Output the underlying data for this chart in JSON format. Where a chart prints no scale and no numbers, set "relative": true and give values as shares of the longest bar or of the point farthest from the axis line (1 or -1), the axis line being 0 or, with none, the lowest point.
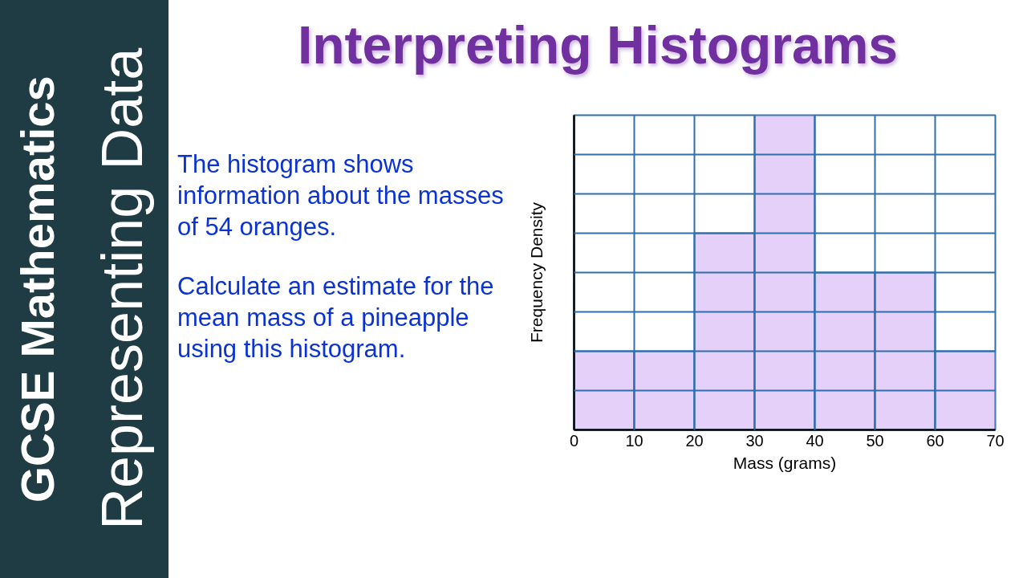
{
  "chart_data": {
    "type": "bar",
    "title": "Interpreting Histograms",
    "xlabel": "Mass (grams)",
    "ylabel": "Frequency Density",
    "x": [
      5,
      15,
      25,
      35,
      45,
      55,
      65
    ],
    "values": [
      0.25,
      0.25,
      0.625,
      1,
      0.5,
      0.5,
      0.25
    ],
    "relative": true,
    "color": "#e4d0f8",
    "xlim": [
      0,
      70
    ],
    "xticks": [
      0,
      10,
      20,
      30,
      40,
      50,
      60,
      70
    ],
    "grid": true,
    "annotations": [
      "GCSE Mathematics",
      "Representing Data",
      "The histogram shows information about the masses of 54 oranges.",
      "Calculate an estimate for the mean mass of a pineapple using this histogram."
    ]
  }
}
